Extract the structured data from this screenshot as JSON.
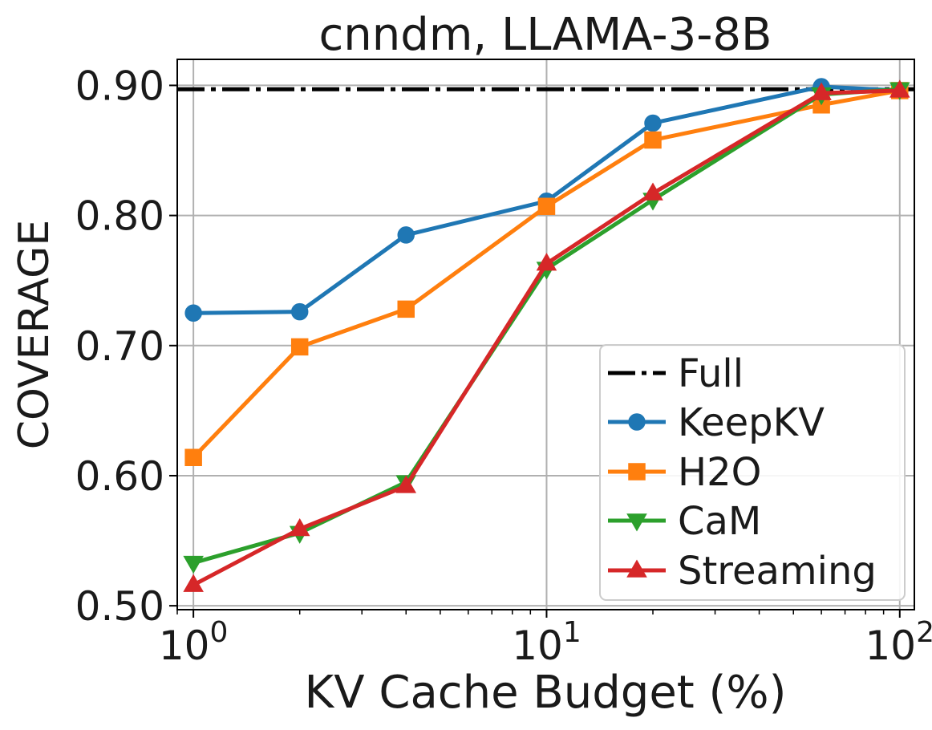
{
  "chart_data": {
    "type": "line",
    "title": "cnndm, LLAMA-3-8B",
    "xlabel": "KV Cache Budget (%)",
    "ylabel": "COVERAGE",
    "xscale": "log",
    "xlim": [
      0.9,
      110
    ],
    "ylim": [
      0.497,
      0.92
    ],
    "x_ticks": [
      {
        "value": 1,
        "base": "10",
        "exp": "0"
      },
      {
        "value": 10,
        "base": "10",
        "exp": "1"
      },
      {
        "value": 100,
        "base": "10",
        "exp": "2"
      }
    ],
    "y_ticks": [
      {
        "value": 0.5,
        "label": "0.50"
      },
      {
        "value": 0.6,
        "label": "0.60"
      },
      {
        "value": 0.7,
        "label": "0.70"
      },
      {
        "value": 0.8,
        "label": "0.80"
      },
      {
        "value": 0.9,
        "label": "0.90"
      }
    ],
    "grid": true,
    "legend_position": "bottom-right",
    "reference_line": {
      "name": "Full",
      "value": 0.897,
      "color": "#000000",
      "style": "dash-dot"
    },
    "x": [
      1,
      2,
      4,
      10,
      20,
      60,
      100
    ],
    "series": [
      {
        "name": "KeepKV",
        "color": "#1f77b4",
        "marker": "circle",
        "values": [
          0.725,
          0.726,
          0.785,
          0.811,
          0.871,
          0.899,
          0.896
        ]
      },
      {
        "name": "H2O",
        "color": "#ff7f0e",
        "marker": "square",
        "values": [
          0.614,
          0.699,
          0.728,
          0.807,
          0.858,
          0.885,
          0.896
        ]
      },
      {
        "name": "CaM",
        "color": "#2ca02c",
        "marker": "triangle-down",
        "values": [
          0.533,
          0.556,
          0.595,
          0.759,
          0.812,
          0.893,
          0.897
        ]
      },
      {
        "name": "Streaming",
        "color": "#d62728",
        "marker": "triangle-up",
        "values": [
          0.516,
          0.559,
          0.592,
          0.763,
          0.817,
          0.894,
          0.896
        ]
      }
    ]
  }
}
